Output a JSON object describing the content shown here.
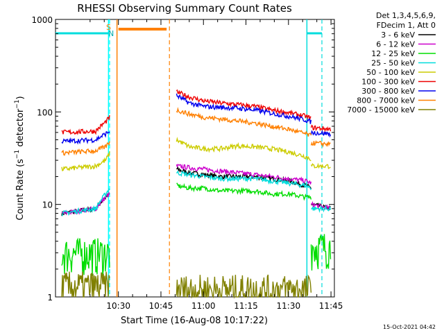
{
  "chart_data": {
    "type": "line",
    "title": "RHESSI Observing Summary Count Rates",
    "xlabel": "Start Time (16-Aug-08 10:17:22)",
    "ylabel_main": "Count Rate (s",
    "ylabel_exp": "−1",
    "ylabel_mid": " detector",
    "ylabel_exp2": "−1",
    "ylabel_end": ")",
    "footer": "15-Oct-2021 04:42",
    "yscale": "log",
    "ylim": [
      1,
      1000
    ],
    "xlim_minutes": [
      10.0,
      105.0
    ],
    "x_start_minutes": 10.0,
    "x_ticks": [
      {
        "label": "10:30",
        "minute": 30
      },
      {
        "label": "10:45",
        "minute": 45
      },
      {
        "label": "11:00",
        "minute": 60
      },
      {
        "label": "11:15",
        "minute": 75
      },
      {
        "label": "11:30",
        "minute": 90
      },
      {
        "label": "11:45",
        "minute": 105
      }
    ],
    "y_ticks": [
      {
        "label": "1",
        "value": 1
      },
      {
        "label": "10",
        "value": 10
      },
      {
        "label": "100",
        "value": 100
      },
      {
        "label": "1000",
        "value": 1000
      }
    ],
    "legend": {
      "header1": "Det 1,3,4,5,6,9,",
      "header2": "FDecim 1, Att 0",
      "position": "top-right"
    },
    "markers": {
      "s_label": "S",
      "n_label": "N"
    },
    "shading": [
      {
        "name": "night",
        "start": 26.5,
        "end": 26.9,
        "color": "#00ffff"
      },
      {
        "name": "saa",
        "start": 29.5,
        "end": 48.0,
        "color": "#ff8000"
      }
    ],
    "series": [
      {
        "name": "3 - 6 keV",
        "color": "#000000",
        "segments": [
          {
            "x": [
              10,
              22,
              25.5,
              27.0
            ],
            "y": [
              8,
              9,
              12,
              13
            ]
          },
          {
            "x": [
              50.5,
              55,
              60,
              66,
              72,
              78,
              84,
              90,
              96,
              98
            ],
            "y": [
              24,
              22,
              21,
              20,
              20,
              20,
              19,
              18,
              16,
              15
            ]
          },
          {
            "x": [
              98,
              105
            ],
            "y": [
              10,
              9
            ]
          }
        ]
      },
      {
        "name": "6 - 12 keV",
        "color": "#cc00cc",
        "segments": [
          {
            "x": [
              10,
              22,
              25.5,
              27.0
            ],
            "y": [
              8,
              9,
              12,
              13
            ]
          },
          {
            "x": [
              50.5,
              55,
              60,
              66,
              72,
              78,
              84,
              90,
              96,
              98
            ],
            "y": [
              26,
              25,
              24,
              23,
              22,
              21,
              20,
              19,
              18,
              17
            ]
          },
          {
            "x": [
              98,
              105
            ],
            "y": [
              10,
              9
            ]
          }
        ]
      },
      {
        "name": "12 - 25 keV",
        "color": "#00dd00",
        "segments": [
          {
            "x": [
              10,
              22,
              25.5,
              27.0
            ],
            "y": [
              3,
              3,
              3,
              3
            ]
          },
          {
            "x": [
              50.5,
              55,
              60,
              66,
              72,
              78,
              84,
              90,
              96,
              98
            ],
            "y": [
              16,
              15,
              15,
              14,
              14,
              14,
              13,
              13,
              12,
              12
            ]
          },
          {
            "x": [
              98,
              105
            ],
            "y": [
              3.5,
              3.5
            ]
          }
        ]
      },
      {
        "name": "25 - 50 keV",
        "color": "#00dddd",
        "segments": [
          {
            "x": [
              10,
              22,
              25.5,
              27.0
            ],
            "y": [
              8,
              9,
              13,
              15
            ]
          },
          {
            "x": [
              50.5,
              55,
              60,
              66,
              72,
              78,
              84,
              90,
              96,
              98
            ],
            "y": [
              22,
              21,
              20,
              19,
              19,
              19,
              18,
              17,
              16,
              15
            ]
          },
          {
            "x": [
              98,
              105
            ],
            "y": [
              9,
              9
            ]
          }
        ]
      },
      {
        "name": "50 - 100 keV",
        "color": "#cccc00",
        "segments": [
          {
            "x": [
              10,
              22,
              25.5,
              27.0
            ],
            "y": [
              24,
              26,
              30,
              36
            ]
          },
          {
            "x": [
              50.5,
              55,
              60,
              66,
              72,
              78,
              84,
              90,
              96,
              98
            ],
            "y": [
              50,
              42,
              40,
              40,
              43,
              42,
              40,
              37,
              33,
              31
            ]
          },
          {
            "x": [
              98,
              105
            ],
            "y": [
              26,
              26
            ]
          }
        ]
      },
      {
        "name": "100 - 300 keV",
        "color": "#ee0000",
        "segments": [
          {
            "x": [
              10,
              22,
              25.5,
              27.0
            ],
            "y": [
              60,
              62,
              78,
              88
            ]
          },
          {
            "x": [
              50.5,
              55,
              60,
              66,
              72,
              78,
              84,
              90,
              96,
              98
            ],
            "y": [
              165,
              145,
              132,
              125,
              120,
              115,
              105,
              98,
              90,
              85
            ]
          },
          {
            "x": [
              98,
              105
            ],
            "y": [
              68,
              65
            ]
          }
        ]
      },
      {
        "name": "300 - 800 keV",
        "color": "#0000ee",
        "segments": [
          {
            "x": [
              10,
              22,
              25.5,
              27.0
            ],
            "y": [
              48,
              50,
              58,
              62
            ]
          },
          {
            "x": [
              50.5,
              55,
              60,
              66,
              72,
              78,
              84,
              90,
              96,
              98
            ],
            "y": [
              150,
              125,
              115,
              112,
              110,
              105,
              97,
              90,
              82,
              78
            ]
          },
          {
            "x": [
              98,
              105
            ],
            "y": [
              60,
              58
            ]
          }
        ]
      },
      {
        "name": "800 - 7000 keV",
        "color": "#ff8000",
        "segments": [
          {
            "x": [
              10,
              22,
              25.5,
              27.0
            ],
            "y": [
              36,
              38,
              42,
              48
            ]
          },
          {
            "x": [
              50.5,
              55,
              60,
              66,
              72,
              78,
              84,
              90,
              96,
              98
            ],
            "y": [
              105,
              95,
              88,
              84,
              80,
              76,
              70,
              65,
              58,
              55
            ]
          },
          {
            "x": [
              98,
              105
            ],
            "y": [
              46,
              45
            ]
          }
        ]
      },
      {
        "name": "7000 - 15000 keV",
        "color": "#808000",
        "segments": [
          {
            "x": [
              10,
              27
            ],
            "y": [
              1.3,
              1.3
            ]
          },
          {
            "x": [
              50.5,
              98
            ],
            "y": [
              1.2,
              1.2
            ]
          }
        ]
      }
    ]
  }
}
